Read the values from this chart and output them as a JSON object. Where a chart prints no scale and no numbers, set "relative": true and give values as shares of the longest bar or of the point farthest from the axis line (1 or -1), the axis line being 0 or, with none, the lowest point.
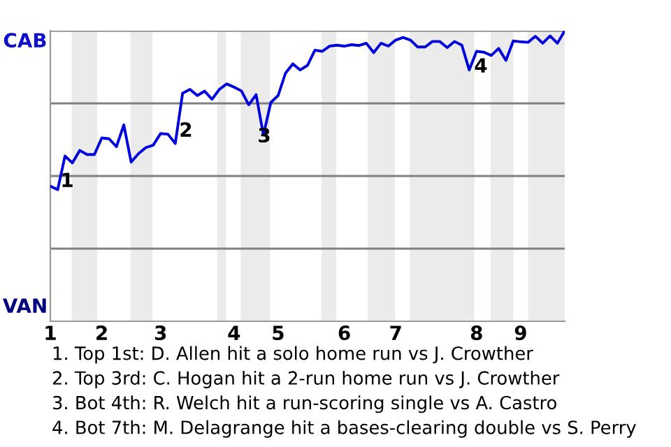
{
  "chart_data": {
    "type": "line",
    "relative": true,
    "categories": [
      "1",
      null,
      null,
      null,
      null,
      null,
      null,
      "2",
      null,
      null,
      null,
      null,
      null,
      null,
      null,
      "3",
      null,
      null,
      null,
      null,
      null,
      null,
      null,
      null,
      null,
      "4",
      null,
      null,
      null,
      null,
      null,
      "5",
      null,
      null,
      null,
      null,
      null,
      null,
      null,
      null,
      "6",
      null,
      null,
      null,
      null,
      null,
      null,
      "7",
      null,
      null,
      null,
      null,
      null,
      null,
      null,
      null,
      null,
      null,
      "8",
      null,
      null,
      null,
      null,
      null,
      "9",
      null,
      null,
      null,
      null,
      null,
      null
    ],
    "series": [
      {
        "color": "#0000dd",
        "values": [
          0.465,
          0.453,
          0.569,
          0.545,
          0.588,
          0.574,
          0.574,
          0.631,
          0.628,
          0.601,
          0.676,
          0.548,
          0.577,
          0.598,
          0.606,
          0.646,
          0.644,
          0.612,
          0.785,
          0.798,
          0.777,
          0.792,
          0.764,
          0.798,
          0.817,
          0.806,
          0.793,
          0.745,
          0.78,
          0.641,
          0.753,
          0.777,
          0.854,
          0.886,
          0.865,
          0.881,
          0.933,
          0.929,
          0.947,
          0.95,
          0.947,
          0.952,
          0.949,
          0.957,
          0.925,
          0.957,
          0.947,
          0.968,
          0.977,
          0.968,
          0.944,
          0.944,
          0.963,
          0.963,
          0.942,
          0.963,
          0.95,
          0.865,
          0.929,
          0.926,
          0.915,
          0.939,
          0.898,
          0.965,
          0.962,
          0.96,
          0.981,
          0.957,
          0.982,
          0.957,
          1.0
        ]
      }
    ],
    "grid": "y",
    "line_style": "solid",
    "marker": "none",
    "annotations": [
      "CAB",
      "VAN",
      "1",
      "2",
      "3",
      "4",
      "1. Top 1st: D. Allen hit a solo home run vs J. Crowther",
      "2. Top 3rd: C. Hogan hit a 2-run home run vs J. Crowther",
      "3. Bot 4th: R. Welch hit a run-scoring single vs A. Castro",
      "4. Bot 7th: M. Delagrange hit a bases-clearing double vs S. Perry"
    ]
  }
}
